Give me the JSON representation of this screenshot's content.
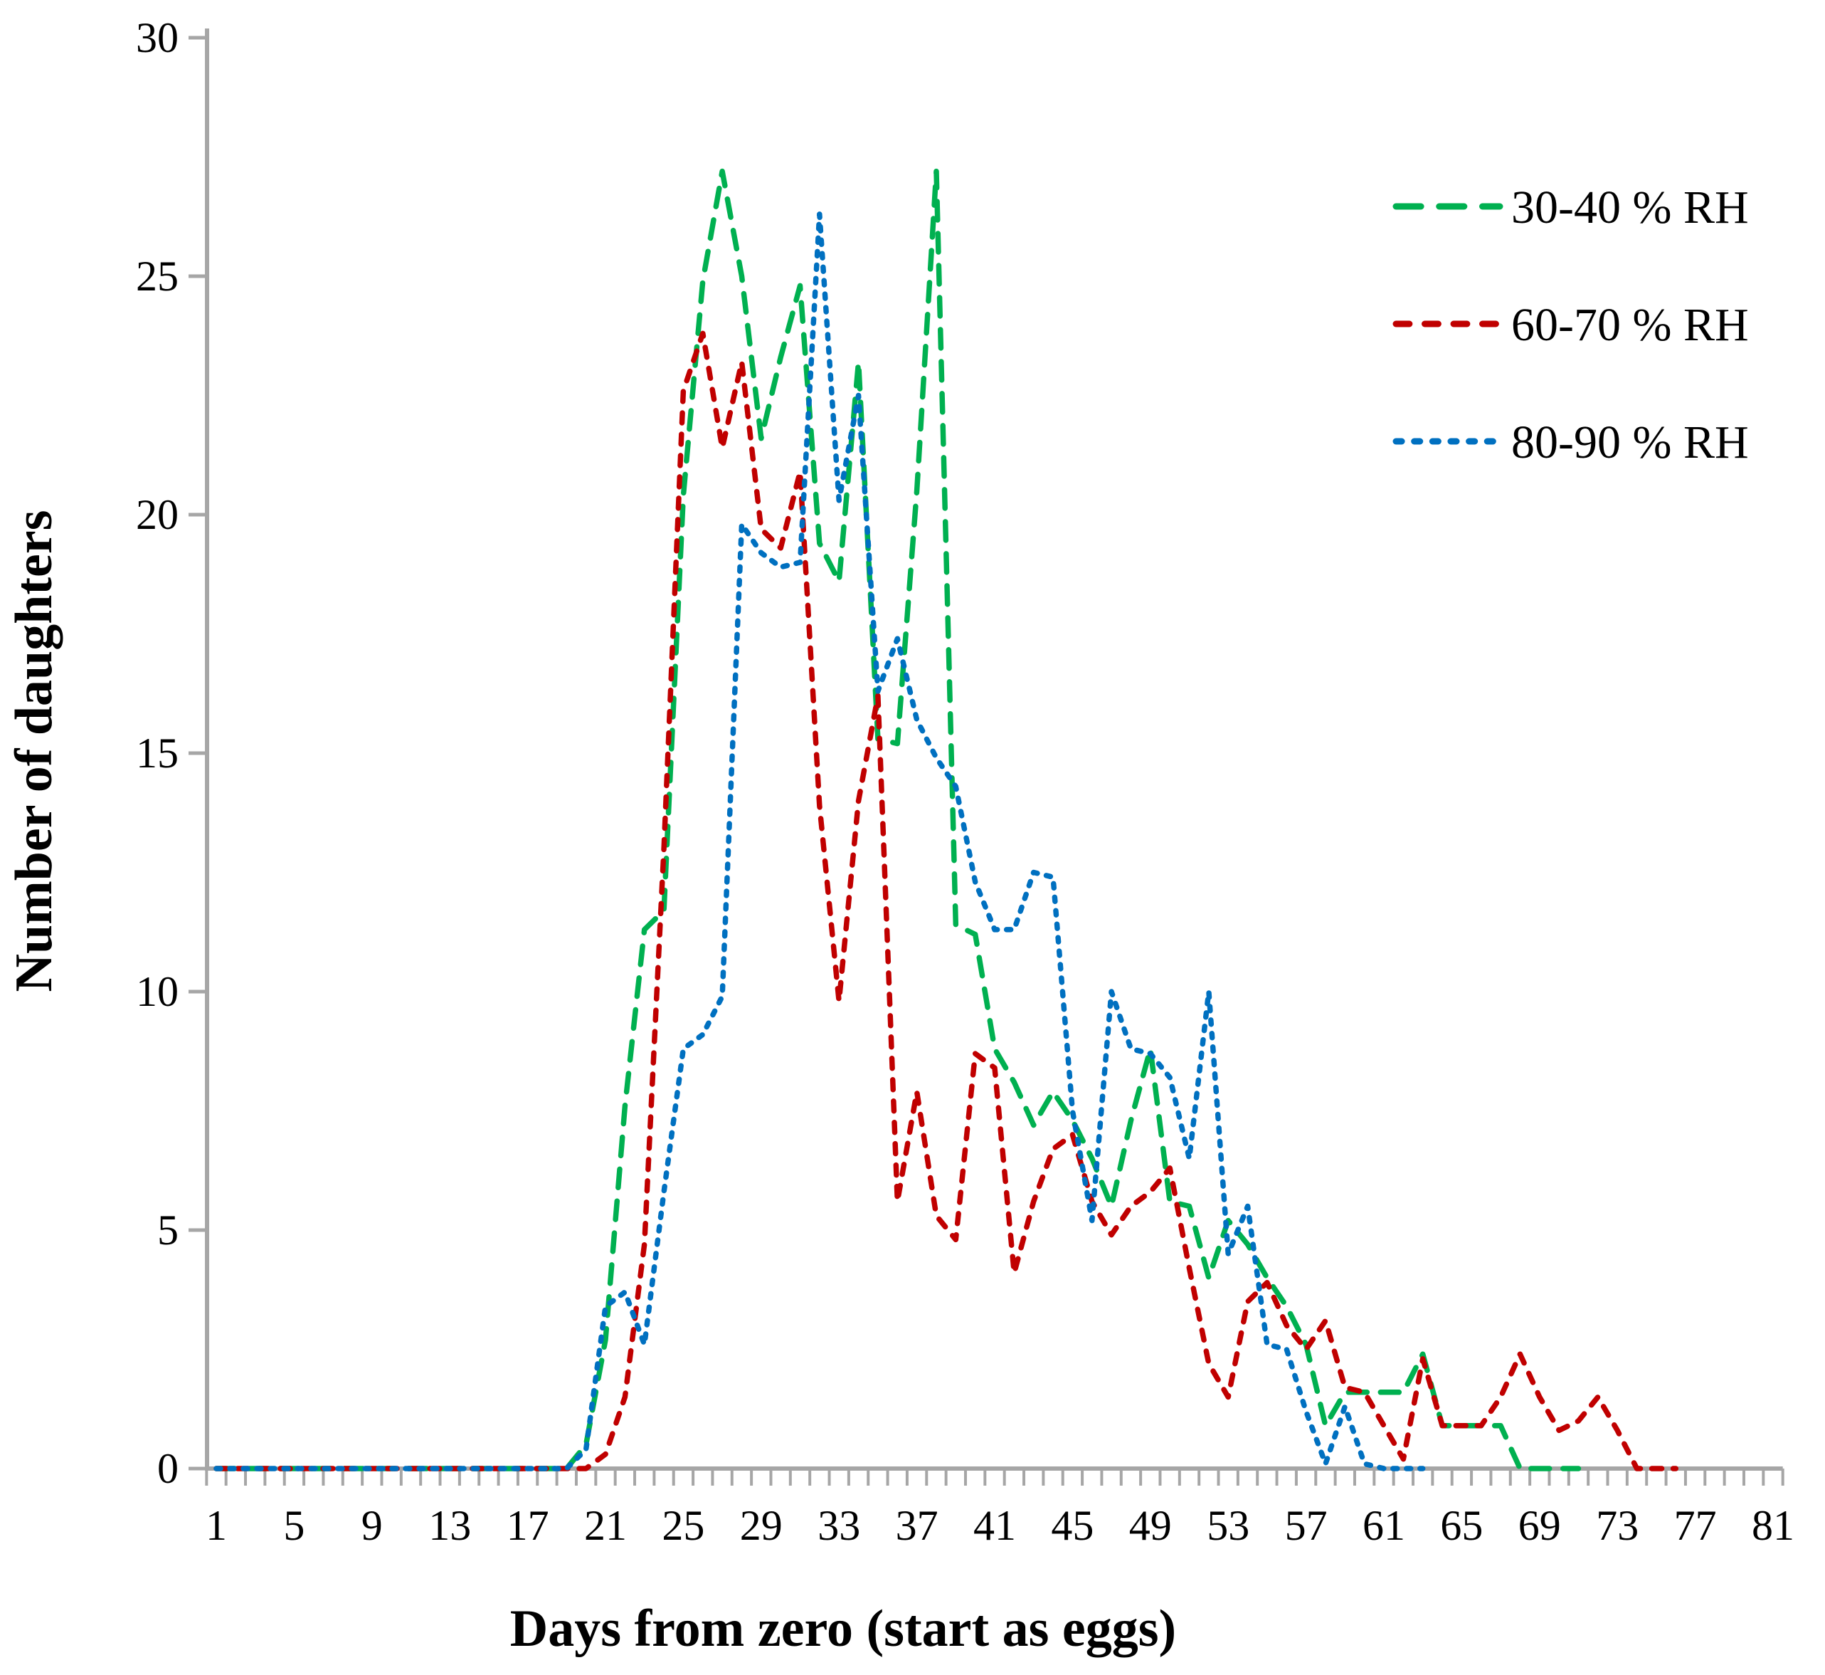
{
  "figure": {
    "x_axis_title": "Days from zero (start as eggs)",
    "y_axis_title": "Number of daughters",
    "axis_color": "#A6A6A6",
    "background_color": "#FFFFFF",
    "text_color": "#000000"
  },
  "legend": {
    "position": "top-right",
    "items": [
      {
        "label": "30-40 % RH",
        "color": "#00B050",
        "dash_style": "long-dash"
      },
      {
        "label": "60-70 % RH",
        "color": "#C00000",
        "dash_style": "dash"
      },
      {
        "label": "80-90 % RH",
        "color": "#0070C0",
        "dash_style": "short-dash"
      }
    ]
  },
  "chart_data": {
    "type": "line",
    "title": "",
    "xlabel": "Days from zero (start as eggs)",
    "ylabel": "Number of daughters",
    "xlim": [
      1,
      81
    ],
    "ylim": [
      0,
      30
    ],
    "grid": false,
    "legend_position": "top-right",
    "x_ticks_labeled": [
      1,
      5,
      9,
      13,
      17,
      21,
      25,
      29,
      33,
      37,
      41,
      45,
      49,
      53,
      57,
      61,
      65,
      69,
      73,
      77,
      81
    ],
    "y_ticks": [
      0,
      5,
      10,
      15,
      20,
      25,
      30
    ],
    "x": [
      1,
      2,
      3,
      4,
      5,
      6,
      7,
      8,
      9,
      10,
      11,
      12,
      13,
      14,
      15,
      16,
      17,
      18,
      19,
      20,
      21,
      22,
      23,
      24,
      25,
      26,
      27,
      28,
      29,
      30,
      31,
      32,
      33,
      34,
      35,
      36,
      37,
      38,
      39,
      40,
      41,
      42,
      43,
      44,
      45,
      46,
      47,
      48,
      49,
      50,
      51,
      52,
      53,
      54,
      55,
      56,
      57,
      58,
      59,
      60,
      61,
      62,
      63,
      64,
      65,
      66,
      67,
      68,
      69,
      70,
      71,
      72,
      73,
      74,
      75,
      76,
      77,
      78,
      79,
      80,
      81
    ],
    "series": [
      {
        "name": "30-40 % RH",
        "color": "#00B050",
        "dash": [
          26,
          19
        ],
        "values": [
          0,
          0,
          0,
          0,
          0,
          0,
          0,
          0,
          0,
          0,
          0,
          0,
          0,
          0,
          0,
          0,
          0,
          0,
          0,
          0.5,
          2.7,
          7.6,
          11.3,
          11.7,
          20.4,
          24.9,
          27.2,
          25,
          21.6,
          23.3,
          24.8,
          19.4,
          18.6,
          23.2,
          15.3,
          15.2,
          20.5,
          27.2,
          11.4,
          11.2,
          8.8,
          8.1,
          7.2,
          7.9,
          7.3,
          6.5,
          5.5,
          7.3,
          8.8,
          5.6,
          5.5,
          4,
          5.2,
          4.7,
          4,
          3.4,
          2.6,
          0.9,
          1.6,
          1.6,
          1.6,
          1.6,
          2.4,
          0.9,
          0.9,
          0.9,
          0.9,
          0,
          0,
          0,
          0,
          null,
          null,
          null,
          null,
          null,
          null,
          null,
          null,
          null,
          null
        ]
      },
      {
        "name": "60-70 % RH",
        "color": "#C00000",
        "dash": [
          14,
          16
        ],
        "values": [
          0,
          0,
          0,
          0,
          0,
          0,
          0,
          0,
          0,
          0,
          0,
          0,
          0,
          0,
          0,
          0,
          0,
          0,
          0,
          0,
          0.3,
          1.5,
          4.7,
          13,
          22.6,
          23.8,
          21.4,
          23.2,
          19.7,
          19.3,
          20.9,
          13.9,
          9.8,
          14,
          16.2,
          5.6,
          7.9,
          5.3,
          4.8,
          8.7,
          8.4,
          4.1,
          5.6,
          6.7,
          7,
          5.6,
          4.9,
          5.5,
          5.8,
          6.3,
          4.2,
          2.2,
          1.5,
          3.5,
          3.9,
          3,
          2.5,
          3.1,
          1.7,
          1.6,
          0.9,
          0.2,
          2.3,
          0.9,
          0.9,
          0.9,
          1.5,
          2.4,
          1.5,
          0.8,
          1,
          1.5,
          0.8,
          0,
          0,
          0,
          null,
          null,
          null,
          null,
          null
        ]
      },
      {
        "name": "80-90 % RH",
        "color": "#0070C0",
        "dash": [
          6,
          13
        ],
        "values": [
          0,
          0,
          0,
          0,
          0,
          0,
          0,
          0,
          0,
          0,
          0,
          0,
          0,
          0,
          0,
          0,
          0,
          0,
          0,
          0.4,
          3.4,
          3.7,
          2.6,
          5.8,
          8.8,
          9.1,
          9.9,
          19.8,
          19.2,
          18.9,
          19,
          26.3,
          20.3,
          22.5,
          16.3,
          17.4,
          15.7,
          14.9,
          14.3,
          12.3,
          11.3,
          11.3,
          12.5,
          12.4,
          7.5,
          5.2,
          10,
          8.8,
          8.7,
          8.2,
          6.5,
          10,
          4.5,
          5.5,
          2.6,
          2.5,
          1.2,
          0.1,
          1.3,
          0.1,
          0,
          0,
          0,
          null,
          null,
          null,
          null,
          null,
          null,
          null,
          null,
          null,
          null,
          null,
          null,
          null,
          null,
          null,
          null,
          null,
          null
        ]
      }
    ]
  }
}
